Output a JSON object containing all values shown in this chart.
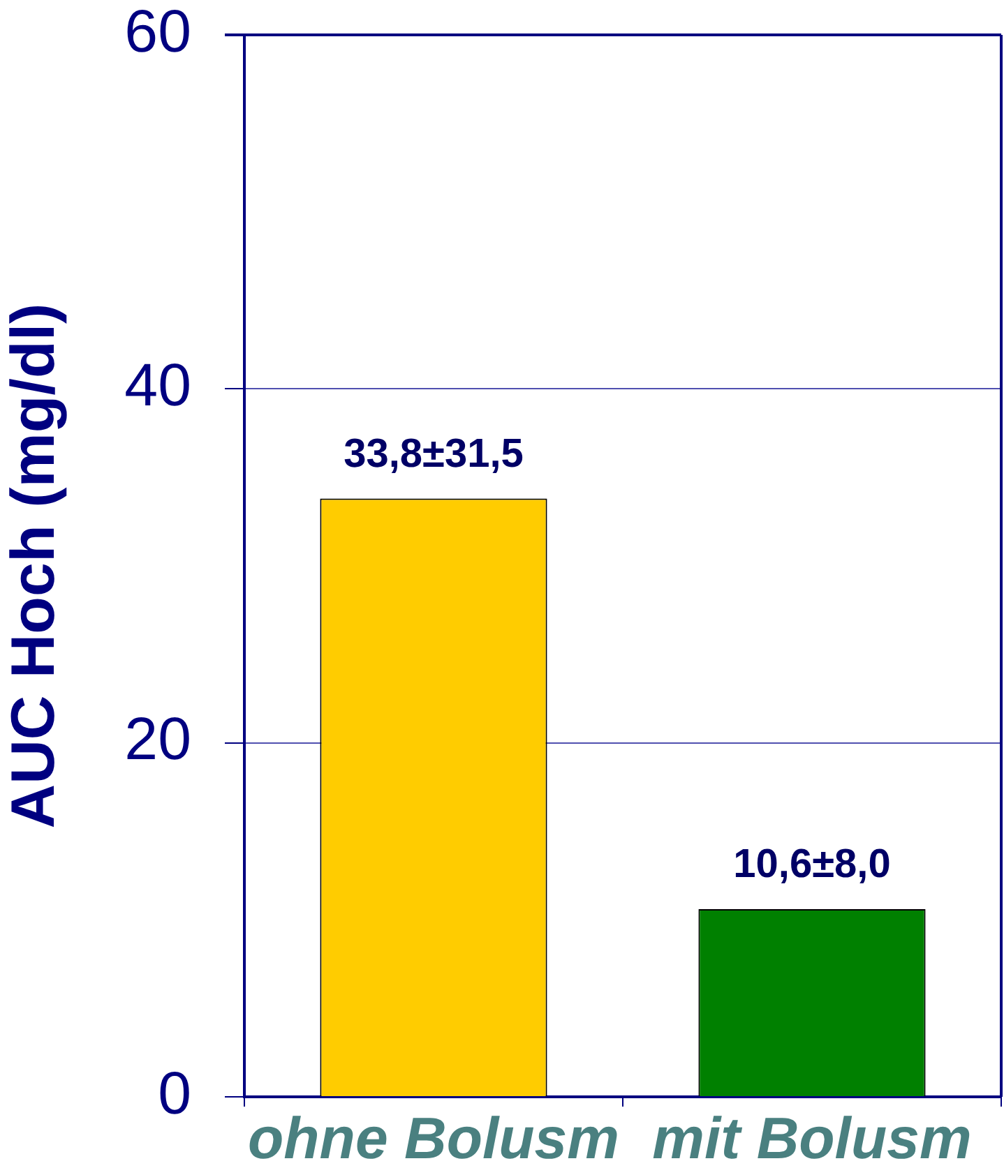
{
  "chart_data": {
    "type": "bar",
    "ylabel": "AUC Hoch (mg/dl)",
    "categories": [
      "ohne Bolusm",
      "mit Bolusm"
    ],
    "values": [
      33.8,
      10.6
    ],
    "colors": [
      "#ffcc00",
      "#008000"
    ],
    "value_labels": [
      "33,8±31,5",
      "10,6±8,0"
    ],
    "ylim": [
      0,
      60
    ],
    "yticks": [
      0,
      20,
      40,
      60
    ],
    "grid": "y"
  }
}
